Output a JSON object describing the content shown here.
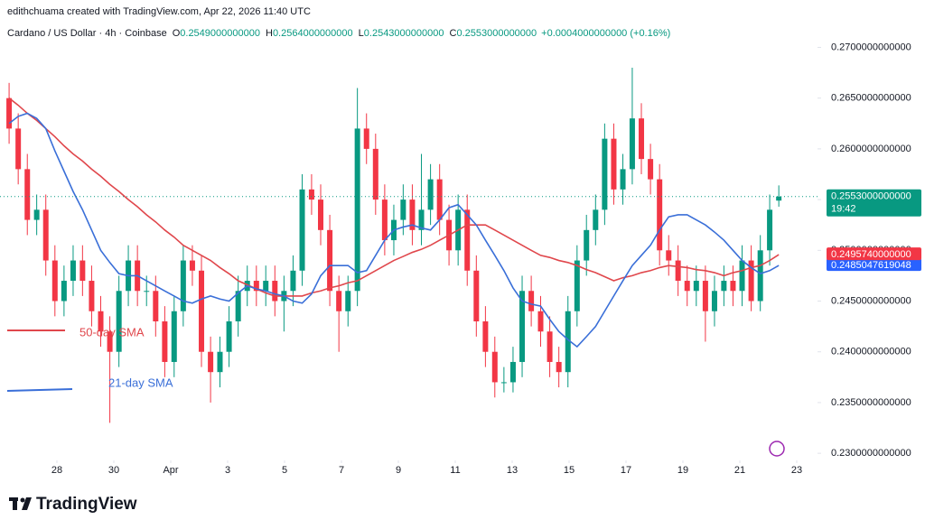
{
  "header": "edithchuama created with TradingView.com, Apr 22, 2026 11:40 UTC",
  "brand": "TradingView",
  "chart_data": {
    "type": "candlestick",
    "symbol": "Cardano / US Dollar · 4h · Coinbase",
    "legend": [
      {
        "key": "O",
        "value": 0.2549,
        "label": "0.2549000000000"
      },
      {
        "key": "H",
        "value": 0.2564,
        "label": "0.2564000000000"
      },
      {
        "key": "L",
        "value": 0.2543,
        "label": "0.2543000000000"
      },
      {
        "key": "C",
        "value": 0.2553,
        "label": "0.2553000000000"
      }
    ],
    "change": {
      "value": 0.0004,
      "label": "+0.0004000000000 (+0.16%)"
    },
    "up_color": "#089981",
    "down_color": "#f23645",
    "x": [
      26.32,
      26.64,
      26.96,
      27.29,
      27.61,
      27.93,
      28.25,
      28.57,
      28.9,
      29.22,
      29.54,
      29.86,
      30.18,
      30.51,
      30.83,
      31.15,
      31.47,
      31.79,
      32.12,
      32.44,
      32.76,
      33.08,
      33.4,
      33.73,
      34.05,
      34.37,
      34.69,
      35.01,
      35.34,
      35.66,
      35.98,
      36.3,
      36.62,
      36.95,
      37.27,
      37.59,
      37.91,
      38.23,
      38.56,
      38.88,
      39.2,
      39.52,
      39.84,
      40.17,
      40.49,
      40.81,
      41.13,
      41.45,
      41.78,
      42.1,
      42.42,
      42.74,
      43.06,
      43.39,
      43.71,
      44.03,
      44.35,
      44.67,
      45.0,
      45.32,
      45.64,
      45.96,
      46.28,
      46.61,
      46.93,
      47.25,
      47.57,
      47.89,
      48.22,
      48.54,
      48.86,
      49.18,
      49.5,
      49.83,
      50.15,
      50.47,
      50.79,
      51.11,
      51.44,
      51.76,
      52.08,
      52.4,
      52.72,
      53.05,
      53.37
    ],
    "open": [
      0.265,
      0.262,
      0.258,
      0.253,
      0.254,
      0.249,
      0.245,
      0.247,
      0.249,
      0.247,
      0.244,
      0.242,
      0.24,
      0.246,
      0.249,
      0.246,
      0.246,
      0.243,
      0.239,
      0.244,
      0.249,
      0.248,
      0.24,
      0.238,
      0.24,
      0.243,
      0.246,
      0.247,
      0.246,
      0.247,
      0.245,
      0.246,
      0.248,
      0.256,
      0.255,
      0.252,
      0.246,
      0.244,
      0.246,
      0.262,
      0.26,
      0.255,
      0.251,
      0.253,
      0.255,
      0.252,
      0.254,
      0.257,
      0.253,
      0.25,
      0.254,
      0.248,
      0.243,
      0.24,
      0.237,
      0.237,
      0.239,
      0.246,
      0.244,
      0.242,
      0.239,
      0.238,
      0.244,
      0.249,
      0.252,
      0.254,
      0.261,
      0.256,
      0.258,
      0.263,
      0.259,
      0.257,
      0.25,
      0.249,
      0.247,
      0.246,
      0.247,
      0.244,
      0.246,
      0.247,
      0.246,
      0.249,
      0.245,
      0.25,
      0.2549
    ],
    "high": [
      0.2665,
      0.2635,
      0.2595,
      0.2555,
      0.2555,
      0.2505,
      0.2485,
      0.2505,
      0.2505,
      0.2485,
      0.2455,
      0.2435,
      0.2475,
      0.2505,
      0.2505,
      0.2475,
      0.2475,
      0.2445,
      0.2455,
      0.2505,
      0.2505,
      0.2495,
      0.2415,
      0.2415,
      0.2445,
      0.2475,
      0.2485,
      0.2485,
      0.2485,
      0.2485,
      0.2475,
      0.2495,
      0.2575,
      0.2575,
      0.2565,
      0.2535,
      0.2475,
      0.2475,
      0.266,
      0.2635,
      0.2615,
      0.2565,
      0.2545,
      0.2565,
      0.2565,
      0.2595,
      0.2585,
      0.2585,
      0.2545,
      0.2555,
      0.2555,
      0.2495,
      0.2445,
      0.2415,
      0.2385,
      0.2405,
      0.2475,
      0.2475,
      0.2455,
      0.2435,
      0.2405,
      0.2455,
      0.2505,
      0.2535,
      0.2555,
      0.2625,
      0.2625,
      0.2595,
      0.268,
      0.2645,
      0.2605,
      0.2585,
      0.2515,
      0.2505,
      0.2485,
      0.2485,
      0.2485,
      0.2475,
      0.2485,
      0.2485,
      0.2505,
      0.2505,
      0.2515,
      0.2555,
      0.2564
    ],
    "low": [
      0.2605,
      0.2565,
      0.2515,
      0.2515,
      0.2475,
      0.2435,
      0.2435,
      0.2455,
      0.2455,
      0.2425,
      0.2405,
      0.233,
      0.2385,
      0.2445,
      0.2445,
      0.2445,
      0.2415,
      0.2375,
      0.2375,
      0.2425,
      0.2465,
      0.2385,
      0.235,
      0.2365,
      0.2385,
      0.2415,
      0.2445,
      0.2445,
      0.2445,
      0.2435,
      0.242,
      0.2445,
      0.2465,
      0.2535,
      0.2505,
      0.2445,
      0.24,
      0.2425,
      0.2445,
      0.2585,
      0.2535,
      0.2495,
      0.2495,
      0.2515,
      0.2505,
      0.2505,
      0.2525,
      0.2515,
      0.2485,
      0.2485,
      0.2465,
      0.2415,
      0.2385,
      0.2355,
      0.236,
      0.236,
      0.2375,
      0.2425,
      0.2405,
      0.2375,
      0.2365,
      0.2365,
      0.2425,
      0.2475,
      0.2505,
      0.2525,
      0.2545,
      0.2545,
      0.2565,
      0.2575,
      0.2555,
      0.2485,
      0.2475,
      0.2455,
      0.2445,
      0.2445,
      0.241,
      0.2425,
      0.2445,
      0.2445,
      0.2445,
      0.244,
      0.244,
      0.2485,
      0.2543
    ],
    "close": [
      0.262,
      0.258,
      0.253,
      0.254,
      0.249,
      0.245,
      0.247,
      0.249,
      0.247,
      0.244,
      0.242,
      0.24,
      0.246,
      0.249,
      0.246,
      0.246,
      0.243,
      0.239,
      0.244,
      0.249,
      0.248,
      0.24,
      0.238,
      0.24,
      0.243,
      0.246,
      0.247,
      0.246,
      0.247,
      0.245,
      0.246,
      0.248,
      0.256,
      0.255,
      0.252,
      0.246,
      0.244,
      0.246,
      0.262,
      0.26,
      0.255,
      0.251,
      0.253,
      0.255,
      0.252,
      0.254,
      0.257,
      0.253,
      0.25,
      0.254,
      0.248,
      0.243,
      0.24,
      0.237,
      0.237,
      0.239,
      0.246,
      0.244,
      0.242,
      0.239,
      0.238,
      0.244,
      0.249,
      0.252,
      0.254,
      0.261,
      0.256,
      0.258,
      0.263,
      0.259,
      0.257,
      0.25,
      0.249,
      0.247,
      0.246,
      0.247,
      0.244,
      0.246,
      0.247,
      0.246,
      0.249,
      0.245,
      0.25,
      0.254,
      0.2553
    ],
    "series": [
      {
        "name": "50-day SMA",
        "color": "#e0474c",
        "values": [
          0.265,
          0.2643,
          0.2635,
          0.2628,
          0.262,
          0.2612,
          0.2603,
          0.2595,
          0.2588,
          0.258,
          0.2573,
          0.2565,
          0.2558,
          0.255,
          0.2543,
          0.2535,
          0.2528,
          0.252,
          0.2513,
          0.2505,
          0.25,
          0.2495,
          0.249,
          0.2483,
          0.2477,
          0.247,
          0.2466,
          0.2462,
          0.2458,
          0.2455,
          0.2455,
          0.2455,
          0.2455,
          0.2458,
          0.246,
          0.2463,
          0.2465,
          0.2468,
          0.247,
          0.2475,
          0.248,
          0.2485,
          0.249,
          0.2494,
          0.2498,
          0.2501,
          0.2505,
          0.251,
          0.2515,
          0.252,
          0.2525,
          0.2525,
          0.2525,
          0.252,
          0.2515,
          0.251,
          0.2505,
          0.25,
          0.2495,
          0.2493,
          0.249,
          0.2488,
          0.2485,
          0.2481,
          0.2478,
          0.2474,
          0.247,
          0.2473,
          0.2475,
          0.2478,
          0.248,
          0.2483,
          0.2485,
          0.2484,
          0.2483,
          0.2481,
          0.248,
          0.2478,
          0.2475,
          0.2478,
          0.248,
          0.2483,
          0.2485,
          0.249,
          0.249574
        ]
      },
      {
        "name": "21-day SMA",
        "color": "#3a6fd8",
        "values": [
          0.2625,
          0.2632,
          0.2635,
          0.263,
          0.262,
          0.2598,
          0.2578,
          0.2558,
          0.254,
          0.252,
          0.25,
          0.2488,
          0.2477,
          0.2475,
          0.2475,
          0.247,
          0.2465,
          0.246,
          0.2455,
          0.245,
          0.2448,
          0.2452,
          0.2455,
          0.2452,
          0.245,
          0.2458,
          0.2465,
          0.2462,
          0.246,
          0.2457,
          0.2455,
          0.245,
          0.2448,
          0.2457,
          0.2475,
          0.2485,
          0.2485,
          0.2485,
          0.2478,
          0.248,
          0.2495,
          0.251,
          0.252,
          0.2523,
          0.2525,
          0.2522,
          0.252,
          0.253,
          0.2542,
          0.2545,
          0.2535,
          0.2525,
          0.251,
          0.2495,
          0.248,
          0.2463,
          0.245,
          0.2447,
          0.2445,
          0.2432,
          0.242,
          0.2412,
          0.2405,
          0.2415,
          0.2425,
          0.244,
          0.2455,
          0.247,
          0.2485,
          0.2495,
          0.2505,
          0.252,
          0.2533,
          0.2535,
          0.2535,
          0.253,
          0.2525,
          0.2518,
          0.251,
          0.25,
          0.249,
          0.2483,
          0.2477,
          0.248,
          0.2485047619048
        ]
      }
    ],
    "price_labels": [
      {
        "value": 0.2553,
        "label": "0.2553000000000",
        "countdown": "19:42",
        "color": "#089981"
      },
      {
        "value": 0.249574,
        "label": "0.2495740000000",
        "color": "#f23645"
      },
      {
        "value": 0.2485047619048,
        "label": "0.2485047619048",
        "color": "#2962ff"
      }
    ],
    "xlim": [
      26,
      54.73
    ],
    "xticks": [
      {
        "value": 28,
        "label": "28"
      },
      {
        "value": 30,
        "label": "30"
      },
      {
        "value": 32,
        "label": "Apr"
      },
      {
        "value": 34,
        "label": "3"
      },
      {
        "value": 36,
        "label": "5"
      },
      {
        "value": 38,
        "label": "7"
      },
      {
        "value": 40,
        "label": "9"
      },
      {
        "value": 42,
        "label": "11"
      },
      {
        "value": 44,
        "label": "13"
      },
      {
        "value": 46,
        "label": "15"
      },
      {
        "value": 48,
        "label": "17"
      },
      {
        "value": 50,
        "label": "19"
      },
      {
        "value": 52,
        "label": "21"
      },
      {
        "value": 54,
        "label": "23"
      }
    ],
    "ylim": [
      0.2293,
      0.272
    ],
    "yticks": [
      {
        "value": 0.23,
        "label": "0.2300000000000"
      },
      {
        "value": 0.235,
        "label": "0.2350000000000"
      },
      {
        "value": 0.24,
        "label": "0.2400000000000"
      },
      {
        "value": 0.245,
        "label": "0.2450000000000"
      },
      {
        "value": 0.25,
        "label": "0.2500000000000"
      },
      {
        "value": 0.255,
        "label": "0.2550000000000"
      },
      {
        "value": 0.26,
        "label": "0.2600000000000"
      },
      {
        "value": 0.265,
        "label": "0.2650000000000"
      },
      {
        "value": 0.27,
        "label": "0.2700000000000"
      }
    ]
  }
}
